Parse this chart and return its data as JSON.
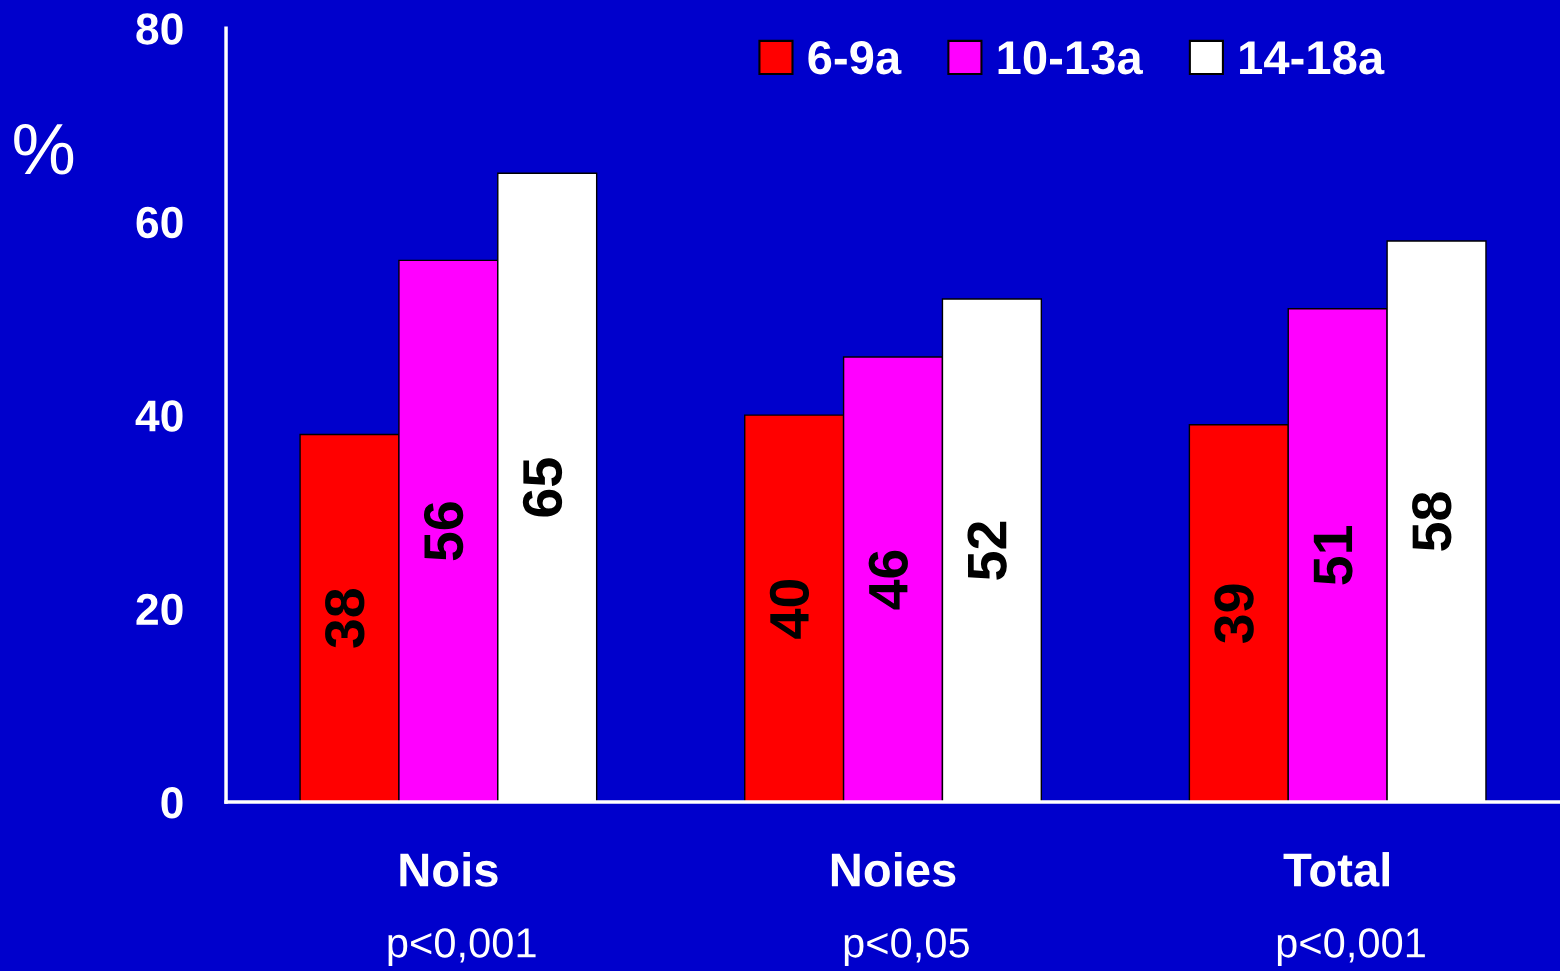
{
  "chart_data": {
    "type": "bar",
    "ylabel": "%",
    "categories": [
      "Nois",
      "Noies",
      "Total"
    ],
    "series": [
      {
        "name": "6-9a",
        "color": "#ff0000",
        "values": [
          38,
          40,
          39
        ]
      },
      {
        "name": "10-13a",
        "color": "#ff00ff",
        "values": [
          56,
          46,
          51
        ]
      },
      {
        "name": "14-18a",
        "color": "#ffffff",
        "values": [
          65,
          52,
          58
        ]
      }
    ],
    "ylim": [
      0,
      80
    ],
    "yticks": [
      0,
      20,
      40,
      60,
      80
    ],
    "grid": false,
    "legend": "top right",
    "data_labels": true,
    "annotations": [
      "p<0,001",
      "p<0,05",
      "p<0,001"
    ]
  }
}
